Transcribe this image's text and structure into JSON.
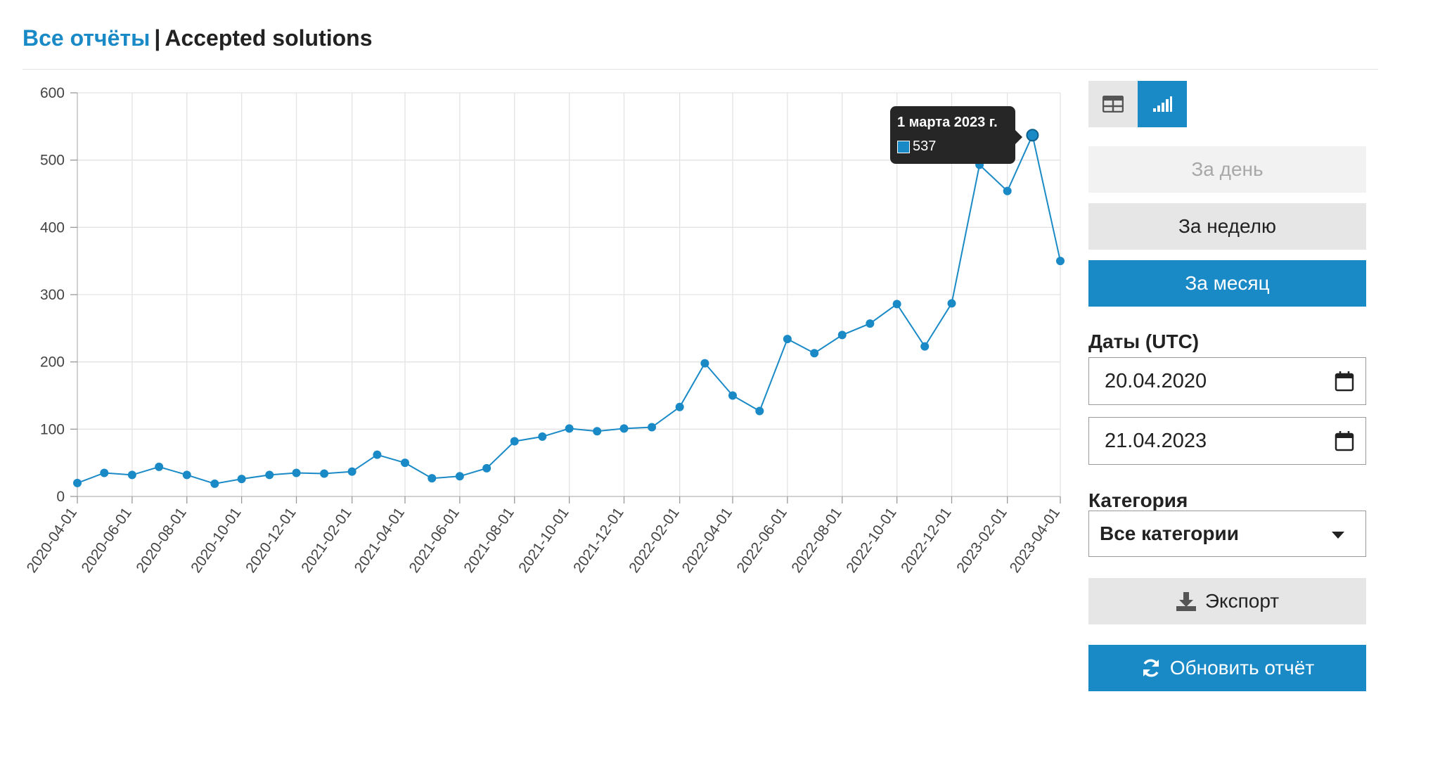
{
  "header": {
    "breadcrumb_link": "Все отчёты",
    "separator": "|",
    "title": "Accepted solutions"
  },
  "controls": {
    "view_table_icon": "table-icon",
    "view_chart_icon": "bar-chart-icon",
    "periods": {
      "day": "За день",
      "week": "За неделю",
      "month": "За месяц"
    },
    "selected_period": "За месяц",
    "dates_label": "Даты (UTC)",
    "date_from": "20.04.2020",
    "date_to": "21.04.2023",
    "category_label": "Категория",
    "category_value": "Все категории",
    "export_label": "Экспорт",
    "refresh_label": "Обновить отчёт"
  },
  "tooltip": {
    "date": "1 марта 2023 г.",
    "value": "537"
  },
  "colors": {
    "accent": "#1a8ac7",
    "line": "#1a8ac7",
    "grid": "#e3e3e3",
    "tooltip_bg": "#262626"
  },
  "chart_data": {
    "type": "line",
    "title": "",
    "xlabel": "",
    "ylabel": "",
    "ylim": [
      0,
      600
    ],
    "yticks": [
      0,
      100,
      200,
      300,
      400,
      500,
      600
    ],
    "xticks": [
      "2020-04-01",
      "2020-06-01",
      "2020-08-01",
      "2020-10-01",
      "2020-12-01",
      "2021-02-01",
      "2021-04-01",
      "2021-06-01",
      "2021-08-01",
      "2021-10-01",
      "2021-12-01",
      "2022-02-01",
      "2022-04-01",
      "2022-06-01",
      "2022-08-01",
      "2022-10-01",
      "2022-12-01",
      "2023-02-01",
      "2023-04-01"
    ],
    "grid": true,
    "legend": "none",
    "series": [
      {
        "x": [
          "2020-04-01",
          "2020-05-01",
          "2020-06-01",
          "2020-07-01",
          "2020-08-01",
          "2020-09-01",
          "2020-10-01",
          "2020-11-01",
          "2020-12-01",
          "2021-01-01",
          "2021-02-01",
          "2021-03-01",
          "2021-04-01",
          "2021-05-01",
          "2021-06-01",
          "2021-07-01",
          "2021-08-01",
          "2021-09-01",
          "2021-10-01",
          "2021-11-01",
          "2021-12-01",
          "2022-01-01",
          "2022-02-01",
          "2022-03-01",
          "2022-04-01",
          "2022-05-01",
          "2022-06-01",
          "2022-07-01",
          "2022-08-01",
          "2022-09-01",
          "2022-10-01",
          "2022-11-01",
          "2022-12-01",
          "2023-01-01",
          "2023-02-01",
          "2023-03-01",
          "2023-04-01"
        ],
        "values": [
          20,
          35,
          32,
          44,
          32,
          19,
          26,
          32,
          35,
          34,
          37,
          62,
          50,
          27,
          30,
          42,
          82,
          89,
          101,
          97,
          101,
          103,
          133,
          198,
          150,
          127,
          234,
          213,
          240,
          257,
          286,
          223,
          287,
          493,
          454,
          537,
          350
        ]
      }
    ],
    "highlighted_point": {
      "x": "2023-03-01",
      "value": 537
    }
  }
}
